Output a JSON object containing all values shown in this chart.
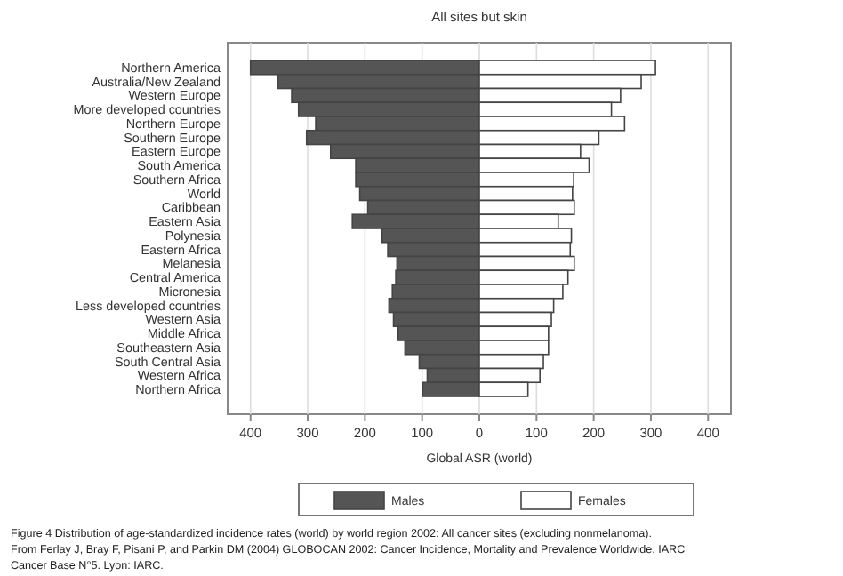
{
  "chart_data": {
    "type": "bar",
    "orientation": "horizontal",
    "stacked": true,
    "title": "All sites but skin",
    "xlabel": "Global ASR (world)",
    "categories": [
      "Northern America",
      "Australia/New Zealand",
      "Western Europe",
      "More developed countries",
      "Northern Europe",
      "Southern Europe",
      "Eastern Europe",
      "South America",
      "Southern Africa",
      "World",
      "Caribbean",
      "Eastern Asia",
      "Polynesia",
      "Eastern Africa",
      "Melanesia",
      "Central America",
      "Micronesia",
      "Less developed countries",
      "Western Asia",
      "Middle Africa",
      "Southeastern Asia",
      "South Central Asia",
      "Western Africa",
      "Northern Africa"
    ],
    "series": [
      {
        "name": "Males",
        "color": "#555555",
        "values": [
          -400,
          -352,
          -328,
          -316,
          -286,
          -302,
          -260,
          -216,
          -216,
          -209,
          -195,
          -222,
          -170,
          -160,
          -144,
          -146,
          -152,
          -158,
          -150,
          -142,
          -130,
          -105,
          -91,
          -99
        ]
      },
      {
        "name": "Females",
        "color": "#ffffff",
        "values": [
          308,
          283,
          247,
          231,
          254,
          209,
          177,
          192,
          165,
          163,
          166,
          138,
          161,
          159,
          166,
          155,
          146,
          130,
          126,
          121,
          121,
          112,
          106,
          85
        ]
      }
    ],
    "xlim": [
      -440,
      440
    ],
    "xticks": [
      {
        "value": -400,
        "label": "400"
      },
      {
        "value": -300,
        "label": "300"
      },
      {
        "value": -200,
        "label": "200"
      },
      {
        "value": -100,
        "label": "100"
      },
      0,
      100,
      200,
      300,
      400
    ],
    "grid": "x",
    "legend": "bottom",
    "annotations": [
      "Figure 4  Distribution of age-standardized incidence rates (world) by world region 2002: All cancer sites (excluding nonmelanoma).",
      "From Ferlay J, Bray F, Pisani P, and Parkin DM (2004) GLOBOCAN 2002: Cancer Incidence, Mortality and Prevalence Worldwide. IARC",
      "Cancer Base N°5. Lyon: IARC."
    ]
  }
}
